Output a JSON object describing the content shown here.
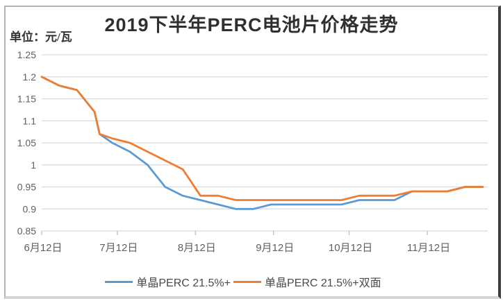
{
  "title": "2019下半年PERC电池片价格走势",
  "unit_label": "单位：元/瓦",
  "colors": {
    "series_mono_blue": "#5B9BD5",
    "series_bifacial_orange": "#ED7D31",
    "gridline": "#D9D9D9",
    "axis_tick": "#BFBFBF",
    "axis_text": "#5f5f5f",
    "title_text": "#2f2f2f"
  },
  "chart_data": {
    "type": "line",
    "title": "2019下半年PERC电池片价格走势",
    "unit": "元/瓦",
    "grid": true,
    "legend_position": "bottom",
    "x_axis": {
      "kind": "date",
      "tick_labels": [
        "6月12日",
        "7月12日",
        "8月12日",
        "9月12日",
        "10月12日",
        "11月12日"
      ],
      "tick_day_offsets": [
        0,
        30,
        61,
        92,
        122,
        153
      ]
    },
    "y_axis": {
      "tick_labels": [
        "0.85",
        "0.9",
        "0.95",
        "1",
        "1.05",
        "1.1",
        "1.15",
        "1.2",
        "1.25"
      ],
      "ticks": [
        0.85,
        0.9,
        0.95,
        1,
        1.05,
        1.1,
        1.15,
        1.2,
        1.25
      ],
      "range": [
        0.85,
        1.25
      ]
    },
    "dates": [
      "6/12",
      "6/19",
      "6/26",
      "7/3",
      "7/5",
      "7/10",
      "7/17",
      "7/24",
      "7/31",
      "8/7",
      "8/14",
      "8/21",
      "8/28",
      "9/4",
      "9/11",
      "9/18",
      "9/25",
      "10/2",
      "10/9",
      "10/16",
      "10/23",
      "10/30",
      "11/6",
      "11/13",
      "11/20",
      "11/27",
      "12/4"
    ],
    "day_offsets": [
      0,
      7,
      14,
      21,
      23,
      28,
      35,
      42,
      49,
      56,
      63,
      70,
      77,
      84,
      91,
      98,
      105,
      112,
      119,
      126,
      133,
      140,
      147,
      154,
      161,
      168,
      175
    ],
    "series": [
      {
        "name": "单晶PERC 21.5%+",
        "color": "#5B9BD5",
        "values": [
          1.2,
          1.18,
          1.17,
          1.12,
          1.07,
          1.05,
          1.03,
          1.0,
          0.95,
          0.93,
          0.92,
          0.91,
          0.9,
          0.9,
          0.91,
          0.91,
          0.91,
          0.91,
          0.91,
          0.92,
          0.92,
          0.92,
          0.94,
          0.94,
          0.94,
          0.95,
          0.95
        ]
      },
      {
        "name": "单晶PERC 21.5%+双面",
        "color": "#ED7D31",
        "values": [
          1.2,
          1.18,
          1.17,
          1.12,
          1.07,
          1.06,
          1.05,
          1.03,
          1.01,
          0.99,
          0.93,
          0.93,
          0.92,
          0.92,
          0.92,
          0.92,
          0.92,
          0.92,
          0.92,
          0.93,
          0.93,
          0.93,
          0.94,
          0.94,
          0.94,
          0.95,
          0.95
        ]
      }
    ]
  }
}
